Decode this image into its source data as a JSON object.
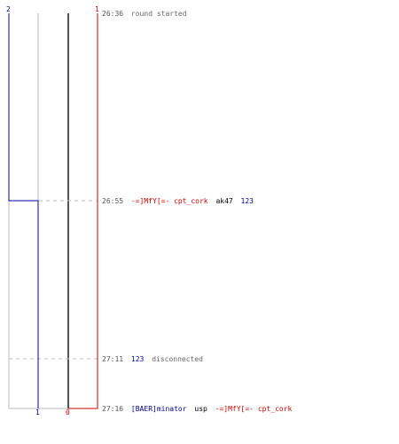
{
  "colors": {
    "team1": "#cc0000",
    "team2": "#000099",
    "time": "#555555",
    "neutral": "#666666",
    "guide": "#bbbbbb",
    "dash": "#bbbbbb",
    "thick": "#555555",
    "text": "#000000"
  },
  "scores": {
    "team2_top": "2",
    "team1_top": "1",
    "team2_bottom": "1",
    "team1_bottom": "0"
  },
  "events": [
    {
      "time": "26:36",
      "parts": [
        {
          "text": "round started",
          "role": "neutral"
        }
      ]
    },
    {
      "time": "26:55",
      "parts": [
        {
          "text": "-=]MfY[=- cpt_cork",
          "role": "team1"
        },
        {
          "text": "ak47",
          "role": "text"
        },
        {
          "text": "123",
          "role": "team2"
        }
      ]
    },
    {
      "time": "27:11",
      "parts": [
        {
          "text": "123",
          "role": "team2"
        },
        {
          "text": "disconnected",
          "role": "neutral"
        }
      ]
    },
    {
      "time": "27:16",
      "parts": [
        {
          "text": "[BAER]minator",
          "role": "team2"
        },
        {
          "text": "usp",
          "role": "text"
        },
        {
          "text": "-=]MfY[=- cpt_cork",
          "role": "team1"
        }
      ]
    }
  ]
}
